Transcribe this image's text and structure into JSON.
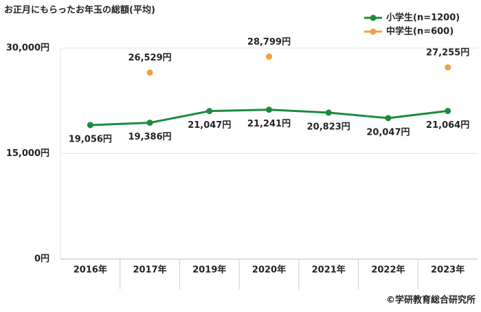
{
  "chart_data": {
    "type": "line",
    "title": "お正月にもらったお年玉の総額(平均)",
    "categories": [
      "2016年",
      "2017年",
      "2019年",
      "2020年",
      "2021年",
      "2022年",
      "2023年"
    ],
    "series": [
      {
        "name": "小学生(n=1200)",
        "color": "#1a8c3c",
        "values": [
          19056,
          19386,
          21047,
          21241,
          20823,
          20047,
          21064
        ],
        "value_labels": [
          "19,056円",
          "19,386円",
          "21,047円",
          "21,241円",
          "20,823円",
          "20,047円",
          "21,064円"
        ]
      },
      {
        "name": "中学生(n=600)",
        "color": "#f0a040",
        "values": [
          null,
          26529,
          null,
          28799,
          null,
          null,
          27255
        ],
        "value_labels": [
          null,
          "26,529円",
          null,
          "28,799円",
          null,
          null,
          "27,255円"
        ]
      }
    ],
    "ylim": [
      0,
      30000
    ],
    "yticks": [
      {
        "value": 0,
        "label": "0円"
      },
      {
        "value": 15000,
        "label": "15,000円"
      },
      {
        "value": 30000,
        "label": "30,000円"
      }
    ],
    "grid": true,
    "legend": "top-right",
    "source": "©学研教育総合研究所"
  }
}
